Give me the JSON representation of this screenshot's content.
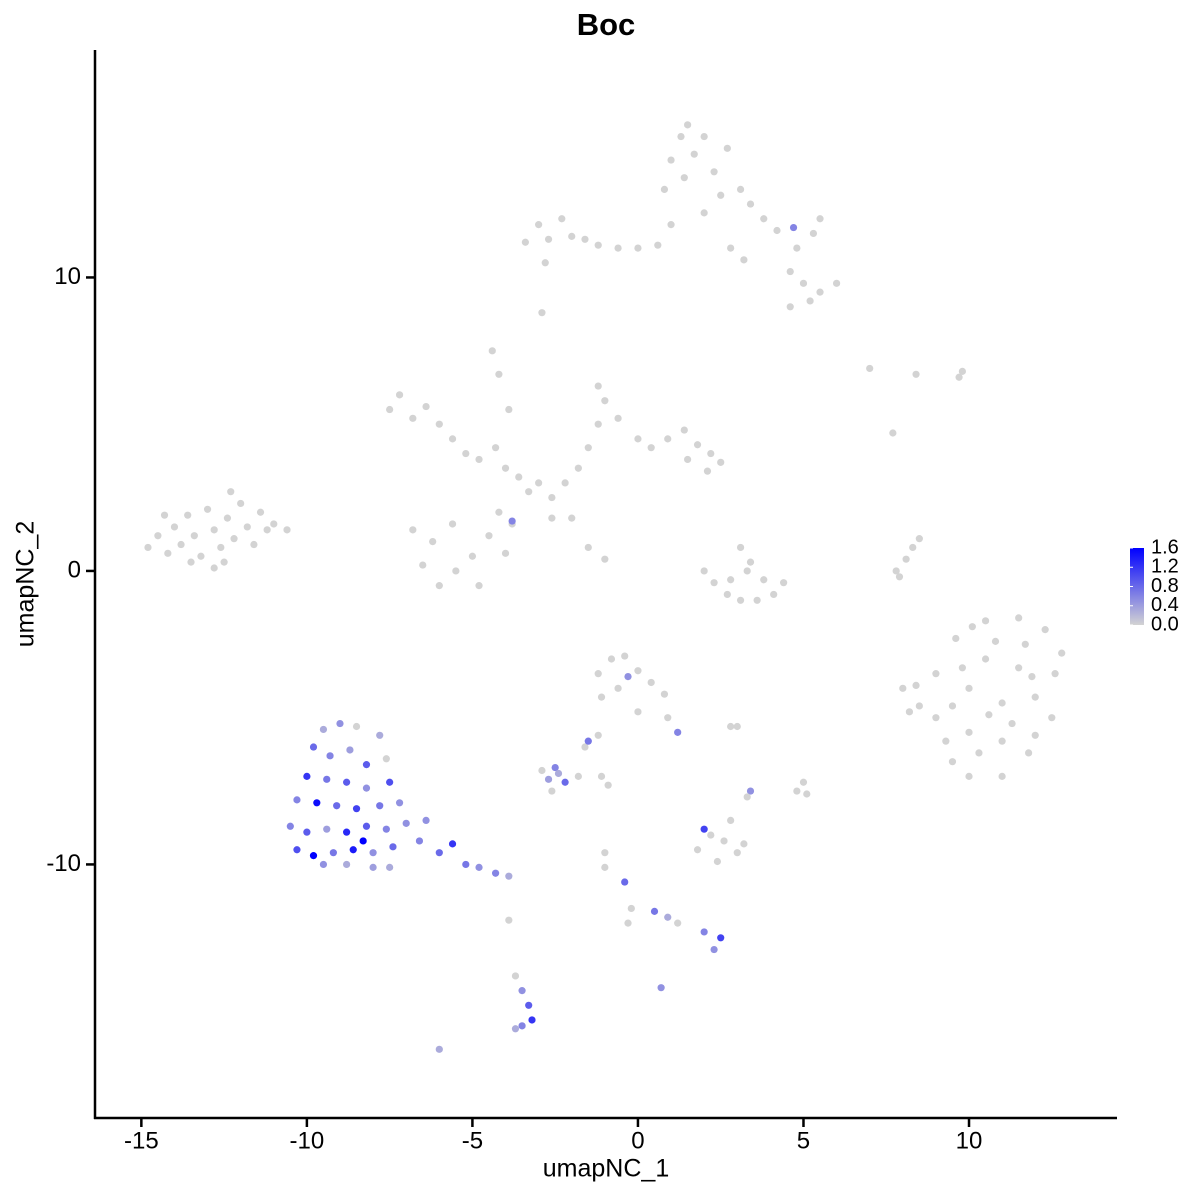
{
  "chart_data": {
    "type": "scatter",
    "title": "Boc",
    "x_label": "umapNC_1",
    "y_label": "umapNC_2",
    "xlim": [
      -16.4,
      14.47
    ],
    "ylim": [
      -18.64,
      17.75
    ],
    "xticks": [
      -15,
      -10,
      -5,
      0,
      5,
      10
    ],
    "yticks": [
      -10,
      0,
      10
    ],
    "low_color": "#d3d3d3",
    "high_color": "#0000ff",
    "colorbar": {
      "lim": [
        0,
        1.6
      ],
      "ticks": [
        {
          "value": 0,
          "label": "0.0"
        },
        0.4,
        0.8,
        1.2,
        1.6
      ]
    },
    "x": [
      -14.8,
      -14.5,
      -14.2,
      -14,
      -13.8,
      -13.6,
      -13.4,
      -13.2,
      -13,
      -12.8,
      -12.6,
      -12.4,
      -12.2,
      -12,
      -11.8,
      -11.6,
      -11.4,
      -11.2,
      -11,
      -10.6,
      -12.8,
      -12.3,
      -13.5,
      -14.3,
      -12.5,
      -3.4,
      -3,
      -2.7,
      -2.3,
      -2,
      -1.6,
      -1.2,
      -0.6,
      0,
      0.6,
      1,
      0.8,
      1,
      1.3,
      1.7,
      1.4,
      2,
      2.3,
      2.7,
      2.5,
      2,
      3.1,
      3.4,
      3.8,
      4.2,
      4.7,
      5.3,
      5.5,
      4.8,
      4.6,
      5,
      5.5,
      6,
      5.2,
      4.6,
      3.2,
      2.8,
      -2.8,
      -2.9,
      1.5,
      -7.5,
      -7.2,
      -6.8,
      -6.4,
      -6,
      -5.6,
      -5.2,
      -4.8,
      -4.3,
      -4,
      -3.6,
      -3.3,
      -3,
      -2.6,
      -2.2,
      -1.8,
      -1.5,
      -1.2,
      -1,
      -1.2,
      -0.6,
      0,
      0.4,
      0.9,
      1.4,
      1.8,
      2.2,
      2.5,
      2.1,
      1.5,
      -4.2,
      -4.4,
      -3.9,
      -4.2,
      -4.5,
      -5,
      -5.5,
      -6,
      -6.5,
      -6.2,
      -5.6,
      -4.8,
      -4,
      -3.8,
      -6.8,
      -2.6,
      -1.5,
      -1,
      -2,
      -3.8,
      2,
      2.3,
      2.7,
      3.1,
      3.6,
      4.1,
      4.4,
      3.3,
      3.1,
      3.4,
      2.8,
      3.8,
      7.8,
      8.1,
      8.3,
      8.5,
      7.9,
      7,
      8.4,
      9.8,
      7.7,
      9.7,
      9,
      9.5,
      10,
      11,
      11.8,
      12.5,
      12.6,
      12.3,
      11.5,
      10.5,
      9.6,
      9,
      8.5,
      10,
      10.5,
      11,
      11.5,
      10,
      11,
      12,
      9.5,
      10.3,
      11.7,
      10.8,
      9.8,
      11.3,
      10.6,
      9.3,
      12,
      8,
      8.2,
      8.4,
      10.1,
      11.9,
      12.8,
      -9.5,
      -9,
      -8.5,
      -7.8,
      -9.8,
      -9.3,
      -8.7,
      -8.2,
      -7.6,
      -10,
      -9.4,
      -8.8,
      -8.2,
      -7.5,
      -10.3,
      -9.7,
      -9.1,
      -8.5,
      -7.8,
      -7.2,
      -10.5,
      -10,
      -9.4,
      -8.8,
      -8.2,
      -7.6,
      -7,
      -10.3,
      -9.8,
      -9.2,
      -8.6,
      -8,
      -7.4,
      -9.5,
      -8.8,
      -8,
      -7.5,
      -6.6,
      -6,
      -5.6,
      -5.2,
      -4.8,
      -4.3,
      -3.9,
      -6.4,
      -8.3,
      -1.2,
      -0.8,
      -0.4,
      0,
      0.4,
      0.8,
      -0.6,
      -1.1,
      0,
      -0.3,
      1.2,
      0.9,
      -1.2,
      -1.6,
      -1.5,
      1.8,
      2.2,
      2.6,
      3,
      3.2,
      2.4,
      2.8,
      2,
      3.4,
      3.3,
      5,
      5.1,
      4.8,
      2.8,
      3,
      -2.9,
      -2.5,
      -2.2,
      -2.7,
      -2.4,
      -1.8,
      -2.6,
      -0.4,
      -0.2,
      -0.3,
      0.5,
      0.9,
      1.2,
      2,
      2.5,
      2.3,
      -3.7,
      -3.5,
      -3.3,
      -3.2,
      -3.5,
      -3.7,
      -6,
      0.7,
      -1,
      -1,
      -3.9,
      -1.1,
      -0.9
    ],
    "y": [
      0.8,
      1.2,
      0.6,
      1.5,
      0.9,
      1.9,
      1.2,
      0.5,
      2.1,
      1.4,
      0.8,
      1.8,
      1.1,
      2.3,
      1.5,
      0.9,
      2,
      1.4,
      1.6,
      1.4,
      0.1,
      2.7,
      0.3,
      1.9,
      0.3,
      11.2,
      11.8,
      11.3,
      12,
      11.4,
      11.3,
      11.1,
      11,
      11,
      11.1,
      11.8,
      13,
      14,
      14.8,
      14.2,
      13.4,
      14.8,
      13.6,
      14.4,
      12.8,
      12.2,
      13,
      12.5,
      12,
      11.6,
      11.7,
      11.5,
      12,
      11,
      10.2,
      9.8,
      9.5,
      9.8,
      9.2,
      9,
      10.6,
      11,
      10.5,
      8.8,
      15.2,
      5.5,
      6,
      5.2,
      5.6,
      5,
      4.5,
      4,
      3.8,
      4.2,
      3.5,
      3.2,
      2.7,
      3,
      2.5,
      3,
      3.5,
      4.2,
      5,
      5.8,
      6.3,
      5.2,
      4.5,
      4.2,
      4.5,
      4.8,
      4.3,
      4,
      3.7,
      3.4,
      3.8,
      6.7,
      7.5,
      5.5,
      2,
      1.2,
      0.5,
      0,
      -0.5,
      0.2,
      1,
      1.6,
      -0.5,
      0.6,
      1.6,
      1.4,
      1.8,
      0.8,
      0.4,
      1.8,
      1.7,
      0,
      -0.4,
      -0.8,
      -1,
      -1,
      -0.8,
      -0.4,
      0,
      0.8,
      0.3,
      -0.3,
      -0.3,
      0,
      0.4,
      0.8,
      1.1,
      -0.2,
      6.9,
      6.7,
      6.8,
      4.7,
      6.6,
      -5,
      -6.5,
      -7,
      -7,
      -6.2,
      -5,
      -3.5,
      -2,
      -1.6,
      -1.7,
      -2.3,
      -3.5,
      -4.6,
      -4,
      -3,
      -4.5,
      -3.3,
      -5.5,
      -5.8,
      -4.3,
      -4.6,
      -6.2,
      -2.5,
      -2.4,
      -3.3,
      -5.2,
      -4.9,
      -5.8,
      -5.6,
      -4,
      -4.8,
      -3.9,
      -1.9,
      -3.6,
      -2.8,
      -5.4,
      -5.2,
      -5.3,
      -5.6,
      -6,
      -6.3,
      -6.1,
      -6.6,
      -6.4,
      -7,
      -7.1,
      -7.2,
      -7.4,
      -7.2,
      -7.8,
      -7.9,
      -8,
      -8.1,
      -8,
      -7.9,
      -8.7,
      -8.9,
      -8.8,
      -8.9,
      -8.7,
      -8.8,
      -8.6,
      -9.5,
      -9.7,
      -9.6,
      -9.5,
      -9.6,
      -9.4,
      -10,
      -10,
      -10.1,
      -10.1,
      -9.2,
      -9.6,
      -9.3,
      -10,
      -10.1,
      -10.3,
      -10.4,
      -8.5,
      -9.2,
      -3.5,
      -3,
      -2.9,
      -3.4,
      -3.8,
      -4.2,
      -4,
      -4.3,
      -4.8,
      -3.6,
      -5.5,
      -5,
      -5.6,
      -6,
      -5.8,
      -9.5,
      -9,
      -9.2,
      -9.6,
      -9.3,
      -9.9,
      -8.5,
      -8.8,
      -7.5,
      -7.7,
      -7.2,
      -7.6,
      -7.5,
      -5.3,
      -5.3,
      -6.8,
      -6.7,
      -7.2,
      -7.1,
      -6.9,
      -7,
      -7.5,
      -10.6,
      -11.5,
      -12,
      -11.6,
      -11.8,
      -12,
      -12.3,
      -12.5,
      -12.9,
      -13.8,
      -14.3,
      -14.8,
      -15.3,
      -15.5,
      -15.6,
      -16.3,
      -14.2,
      -9.6,
      -10.1,
      -11.9,
      -7,
      -7.3
    ],
    "values": [
      0,
      0,
      0,
      0,
      0,
      0,
      0,
      0,
      0,
      0,
      0,
      0,
      0,
      0,
      0,
      0,
      0,
      0,
      0,
      0,
      0,
      0,
      0,
      0,
      0,
      0,
      0,
      0,
      0,
      0,
      0,
      0,
      0,
      0,
      0,
      0,
      0,
      0,
      0,
      0,
      0,
      0,
      0,
      0,
      0,
      0,
      0,
      0,
      0,
      0,
      0.6,
      0,
      0,
      0,
      0,
      0,
      0,
      0,
      0,
      0,
      0,
      0,
      0,
      0,
      0,
      0,
      0,
      0,
      0,
      0,
      0,
      0,
      0,
      0,
      0,
      0,
      0,
      0,
      0,
      0,
      0,
      0,
      0,
      0,
      0,
      0,
      0,
      0,
      0,
      0,
      0,
      0,
      0,
      0,
      0,
      0,
      0,
      0,
      0,
      0,
      0,
      0,
      0,
      0,
      0,
      0,
      0,
      0,
      0,
      0,
      0,
      0,
      0,
      0,
      0.6,
      0,
      0,
      0,
      0,
      0,
      0,
      0,
      0,
      0,
      0,
      0,
      0,
      0,
      0,
      0,
      0,
      0,
      0,
      0,
      0,
      0,
      0,
      0,
      0,
      0,
      0,
      0,
      0,
      0,
      0,
      0,
      0,
      0,
      0,
      0,
      0,
      0,
      0,
      0,
      0,
      0,
      0,
      0,
      0,
      0,
      0,
      0,
      0,
      0,
      0,
      0,
      0,
      0,
      0,
      0,
      0,
      0,
      0.3,
      0.5,
      0,
      0.3,
      0.8,
      0.6,
      0.4,
      0.9,
      0,
      1.2,
      0.7,
      0.9,
      0.5,
      1,
      0.6,
      1.5,
      0.8,
      1.1,
      0.7,
      0.5,
      0.6,
      0.9,
      0.4,
      1.3,
      0.9,
      0.6,
      0.5,
      1,
      1.6,
      0.7,
      1.4,
      0.5,
      0.8,
      0.5,
      0.3,
      0.4,
      0.3,
      0.6,
      0.8,
      1.2,
      0.7,
      0.5,
      0.6,
      0.3,
      0.5,
      1.6,
      0,
      0,
      0,
      0,
      0,
      0,
      0,
      0,
      0,
      0.5,
      0.6,
      0,
      0,
      0,
      0.7,
      0,
      0,
      0,
      0,
      0,
      0,
      0,
      1.1,
      0.5,
      0,
      0,
      0,
      0,
      0,
      0,
      0,
      0.6,
      0.8,
      0.4,
      0.3,
      0,
      0,
      0.8,
      0,
      0,
      0.7,
      0.3,
      0,
      0.6,
      1.1,
      0.5,
      0,
      0.5,
      0.9,
      1.2,
      0.6,
      0.3,
      0.3,
      0.5,
      0,
      0,
      0,
      0,
      0
    ]
  }
}
